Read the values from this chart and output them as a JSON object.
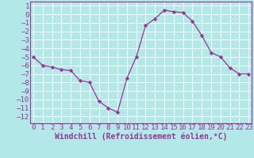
{
  "hours": [
    0,
    1,
    2,
    3,
    4,
    5,
    6,
    7,
    8,
    9,
    10,
    11,
    12,
    13,
    14,
    15,
    16,
    17,
    18,
    19,
    20,
    21,
    22,
    23
  ],
  "values": [
    -5,
    -6,
    -6.2,
    -6.5,
    -6.6,
    -7.8,
    -8,
    -10.2,
    -11,
    -11.5,
    -7.5,
    -5,
    -1.3,
    -0.5,
    0.5,
    0.3,
    0.2,
    -0.8,
    -2.5,
    -4.5,
    -5,
    -6.3,
    -7,
    -7
  ],
  "line_color": "#993399",
  "marker_color": "#993399",
  "bg_color": "#b3e8e8",
  "grid_color": "#ffffff",
  "xlabel": "Windchill (Refroidissement éolien,°C)",
  "ylim": [
    -12.8,
    1.5
  ],
  "xlim": [
    -0.3,
    23.3
  ],
  "yticks": [
    1,
    0,
    -1,
    -2,
    -3,
    -4,
    -5,
    -6,
    -7,
    -8,
    -9,
    -10,
    -11,
    -12
  ],
  "xticks": [
    0,
    1,
    2,
    3,
    4,
    5,
    6,
    7,
    8,
    9,
    10,
    11,
    12,
    13,
    14,
    15,
    16,
    17,
    18,
    19,
    20,
    21,
    22,
    23
  ],
  "tick_color": "#993399",
  "label_color": "#993399",
  "font_size": 6.5,
  "xlabel_fontsize": 7
}
